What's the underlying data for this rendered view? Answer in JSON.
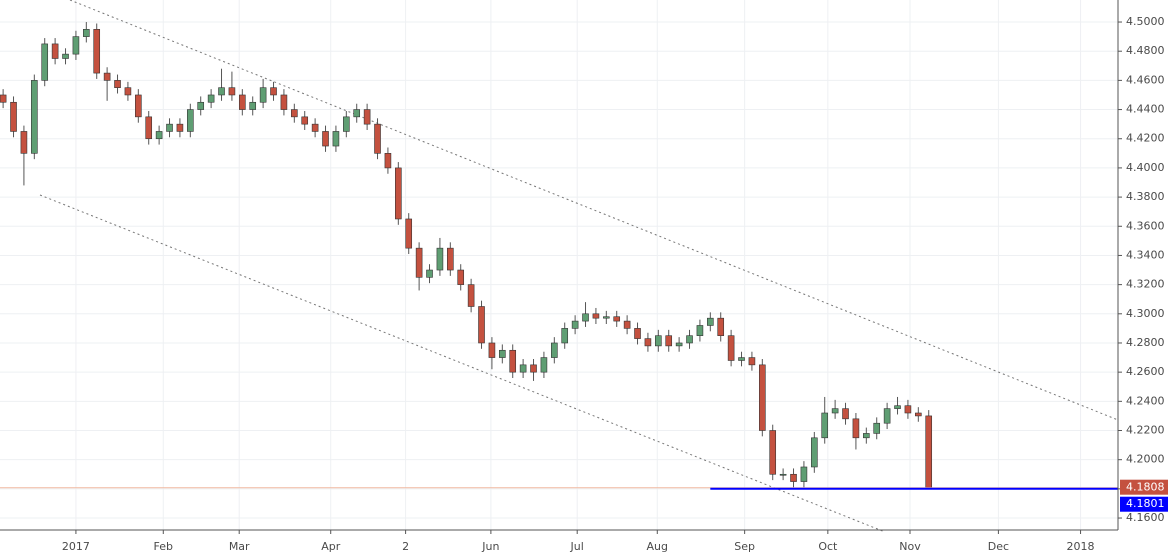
{
  "chart_data": {
    "type": "candlestick",
    "categories": [
      null,
      null,
      null,
      null,
      null,
      null,
      null,
      null,
      null,
      null,
      null,
      null,
      null,
      null,
      null,
      null,
      null,
      null,
      null,
      null,
      null,
      null,
      null,
      null,
      null,
      null,
      null,
      null,
      null,
      null,
      null,
      null,
      null,
      null,
      null,
      null,
      null,
      null,
      null,
      null,
      null,
      null,
      null,
      null,
      null,
      null,
      null,
      null,
      null,
      null,
      null,
      null,
      null,
      null,
      null,
      null,
      null,
      null,
      null,
      null,
      null,
      null,
      null,
      null,
      null,
      null,
      null,
      null,
      null,
      null,
      null,
      null,
      null,
      null,
      null,
      null,
      null,
      null,
      null,
      null,
      null,
      null,
      null,
      null,
      null,
      null,
      null,
      null,
      null,
      null
    ],
    "open": [
      4.45,
      4.445,
      4.425,
      4.41,
      4.46,
      4.485,
      4.475,
      4.478,
      4.49,
      4.495,
      4.465,
      4.46,
      4.455,
      4.45,
      4.435,
      4.42,
      4.425,
      4.43,
      4.425,
      4.44,
      4.445,
      4.45,
      4.455,
      4.45,
      4.44,
      4.445,
      4.455,
      4.45,
      4.44,
      4.435,
      4.43,
      4.425,
      4.415,
      4.425,
      4.435,
      4.44,
      4.43,
      4.41,
      4.4,
      4.365,
      4.345,
      4.325,
      4.33,
      4.345,
      4.33,
      4.32,
      4.305,
      4.28,
      4.27,
      4.275,
      4.26,
      4.265,
      4.26,
      4.27,
      4.28,
      4.29,
      4.295,
      4.3,
      4.297,
      4.298,
      4.295,
      4.29,
      4.283,
      4.278,
      4.285,
      4.278,
      4.28,
      4.285,
      4.292,
      4.297,
      4.285,
      4.268,
      4.27,
      4.265,
      4.22,
      4.19,
      4.19,
      4.185,
      4.195,
      4.215,
      4.232,
      4.235,
      4.228,
      4.215,
      4.218,
      4.225,
      4.235,
      4.237,
      4.232,
      4.23
    ],
    "high": [
      4.454,
      4.449,
      4.429,
      4.464,
      4.489,
      4.489,
      4.482,
      4.494,
      4.5,
      4.499,
      4.469,
      4.464,
      4.459,
      4.454,
      4.439,
      4.429,
      4.434,
      4.434,
      4.444,
      4.449,
      4.454,
      4.468,
      4.466,
      4.454,
      4.449,
      4.461,
      4.459,
      4.454,
      4.444,
      4.439,
      4.434,
      4.429,
      4.429,
      4.439,
      4.444,
      4.444,
      4.434,
      4.414,
      4.404,
      4.369,
      4.349,
      4.334,
      4.352,
      4.349,
      4.334,
      4.324,
      4.309,
      4.284,
      4.279,
      4.279,
      4.269,
      4.269,
      4.274,
      4.284,
      4.294,
      4.299,
      4.308,
      4.304,
      4.302,
      4.302,
      4.299,
      4.294,
      4.287,
      4.289,
      4.289,
      4.284,
      4.289,
      4.296,
      4.301,
      4.301,
      4.289,
      4.274,
      4.274,
      4.269,
      4.224,
      4.194,
      4.194,
      4.199,
      4.219,
      4.243,
      4.241,
      4.239,
      4.232,
      4.222,
      4.229,
      4.239,
      4.243,
      4.241,
      4.236,
      4.234
    ],
    "low": [
      4.441,
      4.421,
      4.388,
      4.406,
      4.456,
      4.471,
      4.471,
      4.474,
      4.486,
      4.461,
      4.446,
      4.451,
      4.446,
      4.431,
      4.416,
      4.416,
      4.421,
      4.421,
      4.421,
      4.436,
      4.441,
      4.446,
      4.446,
      4.436,
      4.436,
      4.441,
      4.446,
      4.436,
      4.431,
      4.426,
      4.421,
      4.411,
      4.411,
      4.421,
      4.431,
      4.426,
      4.406,
      4.396,
      4.361,
      4.341,
      4.316,
      4.321,
      4.326,
      4.326,
      4.316,
      4.301,
      4.276,
      4.262,
      4.266,
      4.256,
      4.256,
      4.254,
      4.256,
      4.266,
      4.276,
      4.286,
      4.291,
      4.293,
      4.293,
      4.291,
      4.286,
      4.279,
      4.274,
      4.274,
      4.274,
      4.274,
      4.276,
      4.281,
      4.288,
      4.281,
      4.264,
      4.264,
      4.261,
      4.216,
      4.186,
      4.186,
      4.181,
      4.181,
      4.191,
      4.211,
      4.228,
      4.224,
      4.207,
      4.211,
      4.214,
      4.221,
      4.231,
      4.228,
      4.226,
      4.1801
    ],
    "close": [
      4.445,
      4.425,
      4.41,
      4.46,
      4.485,
      4.475,
      4.478,
      4.49,
      4.495,
      4.465,
      4.46,
      4.455,
      4.45,
      4.435,
      4.42,
      4.425,
      4.43,
      4.425,
      4.44,
      4.445,
      4.45,
      4.455,
      4.45,
      4.44,
      4.445,
      4.455,
      4.45,
      4.44,
      4.435,
      4.43,
      4.425,
      4.415,
      4.425,
      4.435,
      4.44,
      4.43,
      4.41,
      4.4,
      4.365,
      4.345,
      4.325,
      4.33,
      4.345,
      4.33,
      4.32,
      4.305,
      4.28,
      4.27,
      4.275,
      4.26,
      4.265,
      4.26,
      4.27,
      4.28,
      4.29,
      4.295,
      4.3,
      4.297,
      4.298,
      4.295,
      4.29,
      4.283,
      4.278,
      4.285,
      4.278,
      4.28,
      4.285,
      4.292,
      4.297,
      4.285,
      4.268,
      4.27,
      4.265,
      4.22,
      4.19,
      4.19,
      4.185,
      4.195,
      4.215,
      4.232,
      4.235,
      4.228,
      4.215,
      4.218,
      4.225,
      4.235,
      4.237,
      4.232,
      4.23,
      4.1808
    ],
    "up_color": "#5f9e73",
    "down_color": "#c4513f",
    "xlim": [
      -0.3,
      107.2
    ],
    "xticks": [
      {
        "value": 7.0,
        "label": "2017"
      },
      {
        "value": 15.4,
        "label": "Feb"
      },
      {
        "value": 22.7,
        "label": "Mar"
      },
      {
        "value": 31.5,
        "label": "Apr"
      },
      {
        "value": 38.7,
        "label": "2"
      },
      {
        "value": 46.9,
        "label": "Jun"
      },
      {
        "value": 55.2,
        "label": "Jul"
      },
      {
        "value": 62.9,
        "label": "Aug"
      },
      {
        "value": 71.3,
        "label": "Sep"
      },
      {
        "value": 79.3,
        "label": "Oct"
      },
      {
        "value": 87.2,
        "label": "Nov"
      },
      {
        "value": 95.7,
        "label": "Dec"
      },
      {
        "value": 103.6,
        "label": "2018"
      }
    ],
    "ylim": [
      4.1518,
      4.5151
    ],
    "yticks": [
      {
        "value": 4.16,
        "label": "4.1600"
      },
      {
        "value": 4.18,
        "label": "4.1800"
      },
      {
        "value": 4.2,
        "label": "4.2000"
      },
      {
        "value": 4.22,
        "label": "4.2200"
      },
      {
        "value": 4.24,
        "label": "4.2400"
      },
      {
        "value": 4.26,
        "label": "4.2600"
      },
      {
        "value": 4.28,
        "label": "4.2800"
      },
      {
        "value": 4.3,
        "label": "4.3000"
      },
      {
        "value": 4.32,
        "label": "4.3200"
      },
      {
        "value": 4.34,
        "label": "4.3400"
      },
      {
        "value": 4.36,
        "label": "4.3600"
      },
      {
        "value": 4.38,
        "label": "4.3800"
      },
      {
        "value": 4.4,
        "label": "4.4000"
      },
      {
        "value": 4.42,
        "label": "4.4200"
      },
      {
        "value": 4.44,
        "label": "4.4400"
      },
      {
        "value": 4.46,
        "label": "4.4600"
      },
      {
        "value": 4.48,
        "label": "4.4800"
      },
      {
        "value": 4.5,
        "label": "4.5000"
      }
    ],
    "grid": true,
    "last_price": 4.1808,
    "last_price_color": "#c4513f",
    "support_level": 4.1801,
    "support_color": "#0000ff"
  }
}
